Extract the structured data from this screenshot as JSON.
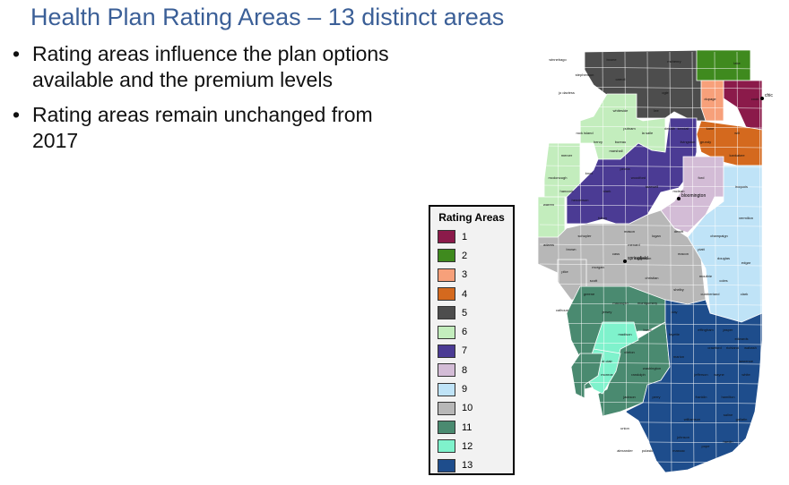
{
  "title": "Health Plan Rating Areas – 13 distinct areas",
  "bullets": [
    "Rating areas influence the plan options available and the premium levels",
    "Rating areas remain unchanged from 2017"
  ],
  "bullet_glyph": "•",
  "legend": {
    "title": "Rating Areas",
    "items": [
      {
        "label": "1",
        "color": "#8b1a4a"
      },
      {
        "label": "2",
        "color": "#3f8a1e"
      },
      {
        "label": "3",
        "color": "#f7a07a"
      },
      {
        "label": "4",
        "color": "#d4691e"
      },
      {
        "label": "5",
        "color": "#4d4d4d"
      },
      {
        "label": "6",
        "color": "#c3edbd"
      },
      {
        "label": "7",
        "color": "#4b3b94"
      },
      {
        "label": "8",
        "color": "#d3bcd6"
      },
      {
        "label": "9",
        "color": "#bfe3f7"
      },
      {
        "label": "10",
        "color": "#b7b7b7"
      },
      {
        "label": "11",
        "color": "#4a8a70"
      },
      {
        "label": "12",
        "color": "#7ff2cc"
      },
      {
        "label": "13",
        "color": "#1e4d8c"
      }
    ]
  },
  "map": {
    "cities": [
      "chicago",
      "bloomington",
      "springfield"
    ],
    "county_labels": [
      "winnebago",
      "boone",
      "mchenry",
      "lake",
      "cook",
      "dupage",
      "kane",
      "will",
      "kankakee",
      "grundy",
      "whiteside",
      "lee",
      "ogle",
      "rock island",
      "henry",
      "bureau",
      "putnam",
      "la salle",
      "livingston",
      "mercer",
      "knox",
      "peoria",
      "tazewell",
      "woodford",
      "mclean",
      "ford",
      "iroquois",
      "vermilion",
      "champaign",
      "douglas",
      "edgar",
      "coles",
      "clark",
      "cumberland",
      "adams",
      "schuyler",
      "brown",
      "pike",
      "fulton",
      "mason",
      "menard",
      "logan",
      "dewitt",
      "macon",
      "piatt",
      "moultrie",
      "shelby",
      "christian",
      "sangamon",
      "morgan",
      "scott",
      "cass",
      "greene",
      "macoupin",
      "montgomery",
      "jersey",
      "calhoun",
      "madison",
      "bond",
      "st clair",
      "clinton",
      "monroe",
      "randolph",
      "washington",
      "perry",
      "jackson",
      "union",
      "alexander",
      "pulaski",
      "massac",
      "pope",
      "hardin",
      "gallatin",
      "saline",
      "williamson",
      "johnson",
      "franklin",
      "hamilton",
      "white",
      "wayne",
      "jefferson",
      "marion",
      "fayette",
      "effingham",
      "jasper",
      "richland",
      "wabash",
      "lawrence",
      "edwards",
      "crawford",
      "clay",
      "mcdonough",
      "hancock",
      "warren",
      "henderson",
      "stark",
      "marshall",
      "kendall",
      "dekalb",
      "carroll",
      "stephenson",
      "jo daviess"
    ]
  }
}
